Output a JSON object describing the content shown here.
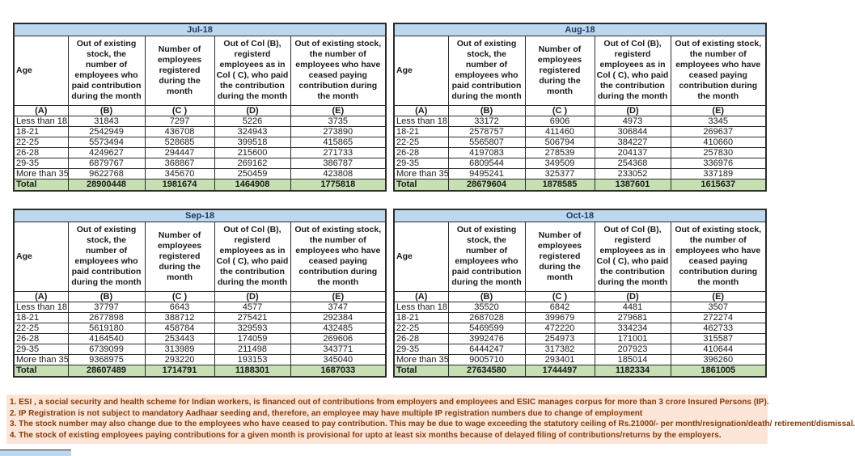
{
  "colors": {
    "month_header_bg": "#BDD7EE",
    "month_header_text": "#1F3864",
    "total_row_bg": "#C6E0B4",
    "footnote_bg": "#FCE4D6",
    "footnote_text": "#843C0C"
  },
  "column_headers": {
    "age": "Age",
    "col_b": "Out of existing stock, the number of employees who paid contribution during the month",
    "col_c": "Number of employees registered during the month",
    "col_d": "Out of Col (B), registerd employees as in Col ( C), who paid the contribution during the month",
    "col_e": "Out of existing stock, the number of employees who have ceased paying contribution during the month"
  },
  "letter_row": [
    "(A)",
    "(B)",
    "(C )",
    "(D)",
    "(E)"
  ],
  "age_groups": [
    "Less than 18",
    "18-21",
    "22-25",
    "26-28",
    "29-35",
    "More than 35"
  ],
  "total_label": "Total",
  "tables": [
    {
      "month": "Jul-18",
      "rows": [
        [
          "31843",
          "7297",
          "5226",
          "3735"
        ],
        [
          "2542949",
          "436708",
          "324943",
          "273890"
        ],
        [
          "5573494",
          "528685",
          "399518",
          "415865"
        ],
        [
          "4249627",
          "294447",
          "215600",
          "271733"
        ],
        [
          "6879767",
          "368867",
          "269162",
          "386787"
        ],
        [
          "9622768",
          "345670",
          "250459",
          "423808"
        ]
      ],
      "total": [
        "28900448",
        "1981674",
        "1464908",
        "1775818"
      ]
    },
    {
      "month": "Aug-18",
      "rows": [
        [
          "33172",
          "6906",
          "4973",
          "3345"
        ],
        [
          "2578757",
          "411460",
          "306844",
          "269637"
        ],
        [
          "5565807",
          "506794",
          "384227",
          "410660"
        ],
        [
          "4197083",
          "278539",
          "204137",
          "257830"
        ],
        [
          "6809544",
          "349509",
          "254368",
          "336976"
        ],
        [
          "9495241",
          "325377",
          "233052",
          "337189"
        ]
      ],
      "total": [
        "28679604",
        "1878585",
        "1387601",
        "1615637"
      ]
    },
    {
      "month": "Sep-18",
      "rows": [
        [
          "37797",
          "6643",
          "4577",
          "3747"
        ],
        [
          "2677898",
          "388712",
          "275421",
          "292384"
        ],
        [
          "5619180",
          "458784",
          "329593",
          "432485"
        ],
        [
          "4164540",
          "253443",
          "174059",
          "269606"
        ],
        [
          "6739099",
          "313989",
          "211498",
          "343771"
        ],
        [
          "9368975",
          "293220",
          "193153",
          "345040"
        ]
      ],
      "total": [
        "28607489",
        "1714791",
        "1188301",
        "1687033"
      ]
    },
    {
      "month": "Oct-18",
      "rows": [
        [
          "35520",
          "6842",
          "4481",
          "3507"
        ],
        [
          "2687028",
          "399679",
          "279681",
          "272274"
        ],
        [
          "5469599",
          "472220",
          "334234",
          "462733"
        ],
        [
          "3992476",
          "254973",
          "171001",
          "315587"
        ],
        [
          "6444247",
          "317382",
          "207923",
          "410644"
        ],
        [
          "9005710",
          "293401",
          "185014",
          "396260"
        ]
      ],
      "total": [
        "27634580",
        "1744497",
        "1182334",
        "1861005"
      ]
    }
  ],
  "footnotes": [
    "1. ESI , a social security and health scheme for Indian workers, is financed out of contributions from employers and employees and ESIC manages corpus for more than 3 crore Insured Persons (IP).",
    "2. IP Registration is not subject to mandatory Aadhaar seeding and, therefore, an employee may have multiple IP registration numbers due to change of employment",
    "3. The stock number may also change due to the employees who have ceased to pay contribution. This may be due to wage exceeding the statutory ceiling of Rs.21000/- per month/resignation/death/ retirement/dismissal.",
    "4. The stock of existing employees paying contributions for a given month is provisional for upto at least six months because of delayed filing of contributions/returns by the employers."
  ]
}
